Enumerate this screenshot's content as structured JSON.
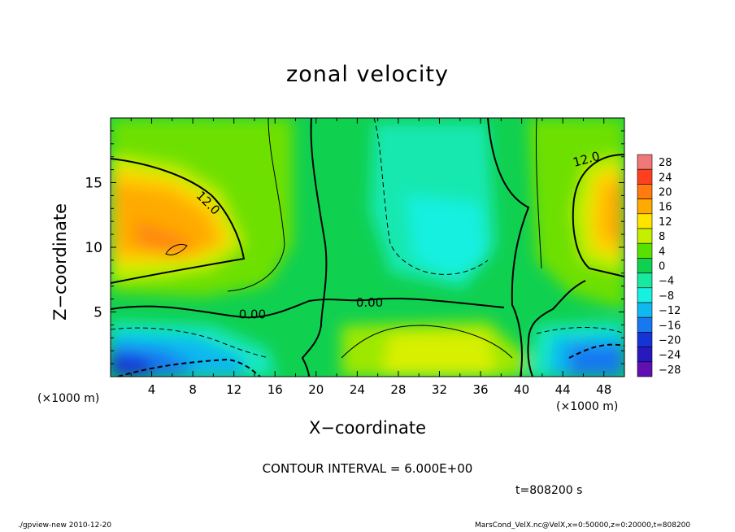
{
  "chart_data": {
    "type": "heatmap",
    "title": "zonal velocity",
    "xlabel": "X−coordinate",
    "ylabel": "Z−coordinate",
    "x_unit_left": "(×1000 m)",
    "x_unit_right": "(×1000 m)",
    "xlim": [
      0,
      50
    ],
    "ylim": [
      0,
      20
    ],
    "x_ticks": [
      "4",
      "8",
      "12",
      "16",
      "20",
      "24",
      "28",
      "32",
      "36",
      "40",
      "44",
      "48"
    ],
    "y_ticks": [
      "5",
      "10",
      "15"
    ],
    "colorbar_levels": [
      "28",
      "24",
      "20",
      "16",
      "12",
      "8",
      "4",
      "0",
      "−4",
      "−8",
      "−12",
      "−16",
      "−20",
      "−24",
      "−28"
    ],
    "colorbar_colors": [
      "#f07878",
      "#ff4020",
      "#ff7a10",
      "#ffaa00",
      "#ffe400",
      "#c4f000",
      "#58e000",
      "#10d050",
      "#18e8a0",
      "#18f0e0",
      "#10b8f0",
      "#1878f0",
      "#1434d8",
      "#2818c0",
      "#6010b0"
    ],
    "contour_labels": [
      "12.0",
      "12.0",
      "0.00",
      "0.00"
    ],
    "contour_interval_text": "CONTOUR INTERVAL = 6.000E+00",
    "time_text": "t=808200 s",
    "footer_left": "./gpview-new  2010-12-20",
    "footer_right": "MarsCond_VelX.nc@VelX,x=0:50000,z=0:20000,t=808200"
  }
}
